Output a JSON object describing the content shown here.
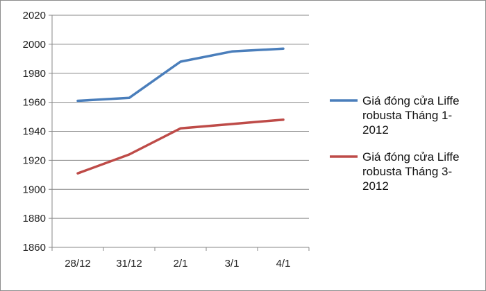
{
  "chart_data": {
    "type": "line",
    "categories": [
      "28/12",
      "31/12",
      "2/1",
      "3/1",
      "4/1"
    ],
    "ylim": [
      1860,
      2020
    ],
    "yticks": [
      "1860",
      "1880",
      "1900",
      "1920",
      "1940",
      "1960",
      "1980",
      "2000",
      "2020"
    ],
    "grid": "horizontal",
    "legend_position": "right",
    "series": [
      {
        "name": "Giá đóng cửa Liffe robusta Tháng 1-2012",
        "legend_lines": [
          "Giá đóng cửa Liffe",
          "robusta Tháng 1-",
          "2012"
        ],
        "color": "#4a7ebb",
        "values": [
          1961,
          1963,
          1988,
          1995,
          1997
        ]
      },
      {
        "name": "Giá đóng cửa Liffe robusta Tháng 3-2012",
        "legend_lines": [
          "Giá đóng cửa Liffe",
          "robusta Tháng 3-",
          "2012"
        ],
        "color": "#be4b48",
        "values": [
          1911,
          1924,
          1942,
          1945,
          1948
        ]
      }
    ]
  }
}
